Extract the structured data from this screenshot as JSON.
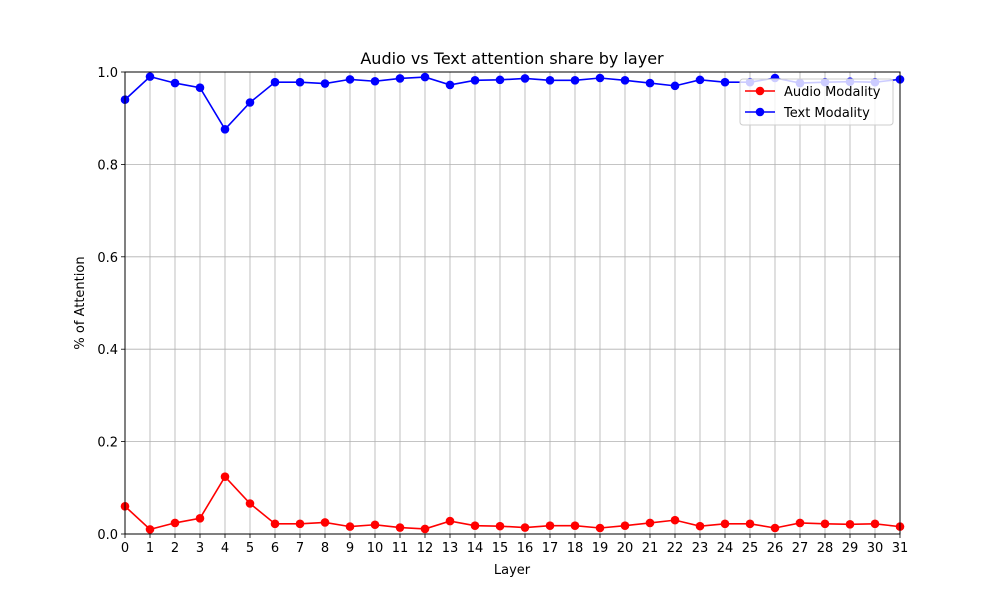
{
  "chart_data": {
    "type": "line",
    "title": "Audio vs Text attention share by layer",
    "xlabel": "Layer",
    "ylabel": "% of Attention",
    "x": [
      0,
      1,
      2,
      3,
      4,
      5,
      6,
      7,
      8,
      9,
      10,
      11,
      12,
      13,
      14,
      15,
      16,
      17,
      18,
      19,
      20,
      21,
      22,
      23,
      24,
      25,
      26,
      27,
      28,
      29,
      30,
      31
    ],
    "x_ticks": [
      "0",
      "1",
      "2",
      "3",
      "4",
      "5",
      "6",
      "7",
      "8",
      "9",
      "10",
      "11",
      "12",
      "13",
      "14",
      "15",
      "16",
      "17",
      "18",
      "19",
      "20",
      "21",
      "22",
      "23",
      "24",
      "25",
      "26",
      "27",
      "28",
      "29",
      "30",
      "31"
    ],
    "y_ticks": [
      "0.0",
      "0.2",
      "0.4",
      "0.6",
      "0.8",
      "1.0"
    ],
    "xlim": [
      0,
      31
    ],
    "ylim": [
      0,
      1
    ],
    "grid": true,
    "legend_position": "top-right",
    "series": [
      {
        "name": "Audio Modality",
        "color": "#ff0000",
        "values": [
          0.06,
          0.01,
          0.024,
          0.034,
          0.124,
          0.066,
          0.022,
          0.022,
          0.025,
          0.016,
          0.02,
          0.014,
          0.011,
          0.028,
          0.018,
          0.017,
          0.014,
          0.018,
          0.018,
          0.013,
          0.018,
          0.024,
          0.03,
          0.017,
          0.022,
          0.022,
          0.013,
          0.024,
          0.022,
          0.021,
          0.022,
          0.016
        ]
      },
      {
        "name": "Text Modality",
        "color": "#0000ff",
        "values": [
          0.94,
          0.99,
          0.976,
          0.966,
          0.876,
          0.934,
          0.978,
          0.978,
          0.975,
          0.984,
          0.98,
          0.986,
          0.989,
          0.972,
          0.982,
          0.983,
          0.986,
          0.982,
          0.982,
          0.987,
          0.982,
          0.976,
          0.97,
          0.983,
          0.978,
          0.978,
          0.987,
          0.976,
          0.978,
          0.979,
          0.978,
          0.984
        ]
      }
    ]
  }
}
